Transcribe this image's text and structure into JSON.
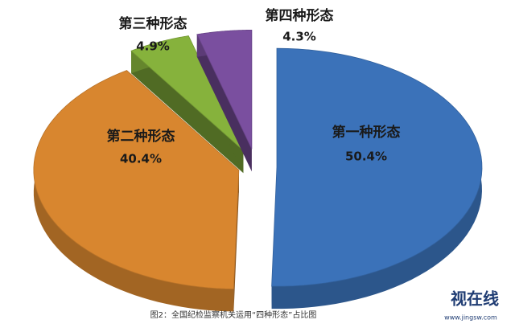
{
  "chart_data": {
    "type": "pie3d",
    "categories": [
      "第一种形态",
      "第二种形态",
      "第三种形态",
      "第四种形态"
    ],
    "values": [
      50.4,
      40.4,
      4.9,
      4.3
    ],
    "value_labels": [
      "50.4%",
      "40.4%",
      "4.9%",
      "4.3%"
    ],
    "colors": [
      "#3b72b9",
      "#d8862f",
      "#86b23c",
      "#7a4f9f"
    ],
    "caption": "图2：全国纪检监察机关运用“四种形态”占比图"
  },
  "watermark": {
    "text": "视在线",
    "url": "www.jingsw.com"
  }
}
